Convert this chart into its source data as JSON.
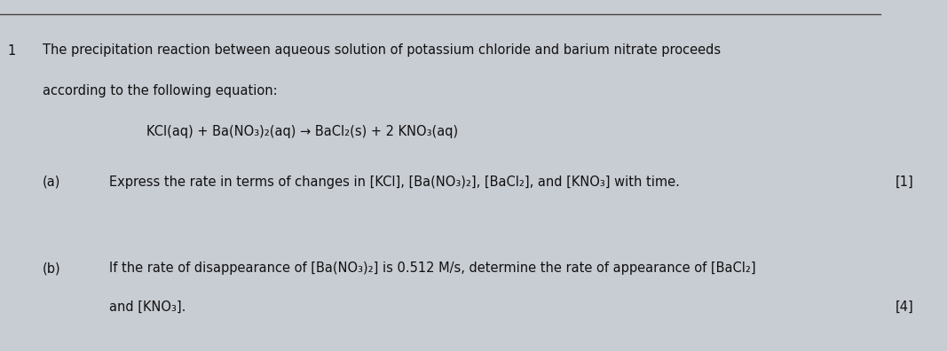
{
  "background_color": "#c8ccd3",
  "line_top_color": "#444444",
  "question_number": "1",
  "intro_line1": "The precipitation reaction between aqueous solution of potassium chloride and barium nitrate proceeds",
  "intro_line2": "according to the following equation:",
  "equation": "KCl(aq) + Ba(NO₃)₂(aq) → BaCl₂(s) + 2 KNO₃(aq)",
  "part_a_label": "(a)",
  "part_a_text": "Express the rate in terms of changes in [KCl], [Ba(NO₃)₂], [BaCl₂], and [KNO₃] with time.",
  "part_a_marks": "[1]",
  "part_b_label": "(b)",
  "part_b_line1": "If the rate of disappearance of [Ba(NO₃)₂] is 0.512 M/s, determine the rate of appearance of [BaCl₂]",
  "part_b_line2": "and [KNO₃].",
  "part_b_marks": "[4]",
  "text_color": "#111111",
  "font_size_intro": 10.5,
  "font_size_equation": 10.5,
  "font_size_parts": 10.5
}
